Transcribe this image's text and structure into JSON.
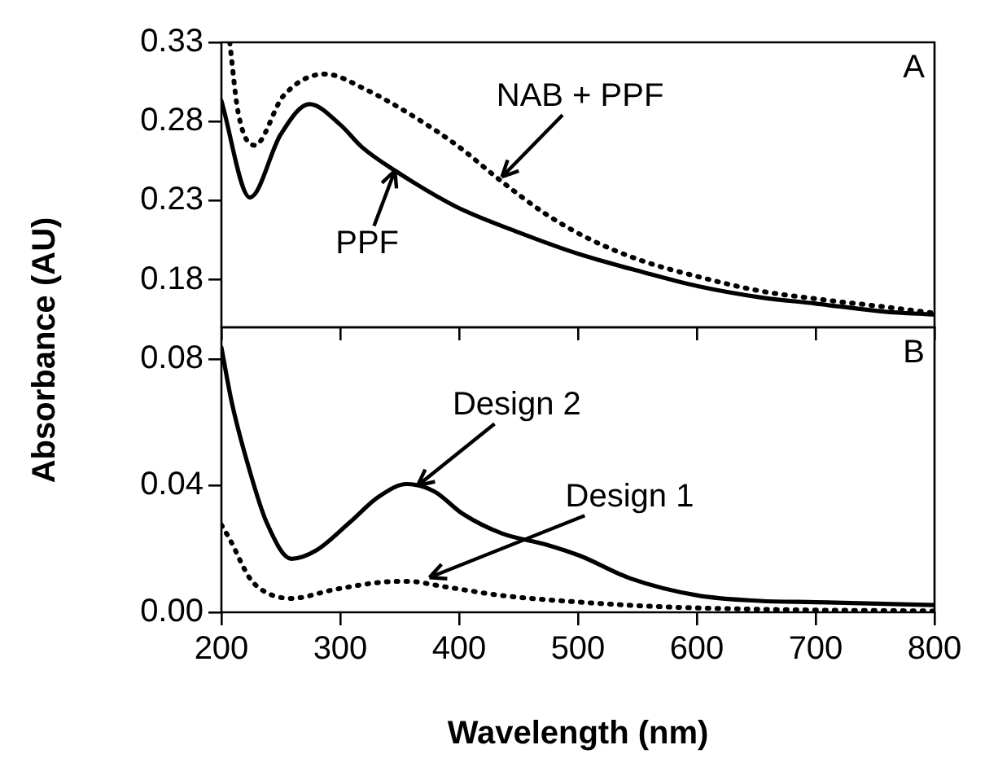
{
  "chart_data": [
    {
      "type": "line",
      "ylabel": "Absorbance (AU)",
      "xlim": [
        200,
        800
      ],
      "xticks": [
        200,
        300,
        400,
        500,
        600,
        700,
        800
      ],
      "ylim": [
        0.15,
        0.33
      ],
      "yticks": [
        0.18,
        0.23,
        0.28,
        0.33
      ],
      "tick_labels": "y",
      "legend": false,
      "grid": false,
      "annotations": [
        "A",
        {
          "text": "PPF",
          "x": 346,
          "y": 0.249
        },
        {
          "text": "NAB + PPF",
          "x": 436,
          "y": 0.245
        }
      ],
      "series": [
        {
          "color": "#000000",
          "line_style": "solid",
          "x": [
            200,
            224,
            250,
            274,
            300,
            318,
            346,
            398,
            450,
            502,
            554,
            601,
            653,
            700,
            757,
            800
          ],
          "values": [
            0.293,
            0.232,
            0.272,
            0.291,
            0.278,
            0.264,
            0.249,
            0.226,
            0.21,
            0.196,
            0.185,
            0.176,
            0.169,
            0.165,
            0.16,
            0.158
          ]
        },
        {
          "color": "#000000",
          "line_style": "dotted",
          "x": [
            207,
            214,
            228,
            252,
            287,
            322,
            360,
            398,
            436,
            472,
            509,
            554,
            601,
            653,
            700,
            757,
            800
          ],
          "values": [
            0.33,
            0.286,
            0.265,
            0.296,
            0.31,
            0.3,
            0.284,
            0.265,
            0.242,
            0.222,
            0.206,
            0.192,
            0.182,
            0.173,
            0.168,
            0.163,
            0.159
          ]
        }
      ]
    },
    {
      "type": "line",
      "xlabel": "Wavelength (nm)",
      "xlim": [
        200,
        800
      ],
      "xticks": [
        200,
        300,
        400,
        500,
        600,
        700,
        800
      ],
      "ylim": [
        0,
        0.09
      ],
      "yticks": [
        {
          "value": 0,
          "label": "0.00"
        },
        0.04,
        0.08
      ],
      "legend": false,
      "grid": false,
      "annotations": [
        "B",
        {
          "text": "Design 2",
          "x": 365,
          "y": 0.04
        },
        {
          "text": "Design 1",
          "x": 375,
          "y": 0.011
        }
      ],
      "series": [
        {
          "color": "#000000",
          "line_style": "solid",
          "x": [
            200,
            209,
            224,
            238,
            259,
            280,
            308,
            332,
            356,
            379,
            403,
            436,
            474,
            502,
            544,
            601,
            653,
            700,
            800
          ],
          "values": [
            0.0836,
            0.0658,
            0.0444,
            0.0284,
            0.0169,
            0.0196,
            0.0284,
            0.0364,
            0.0405,
            0.0382,
            0.0311,
            0.0249,
            0.0213,
            0.0178,
            0.0107,
            0.0053,
            0.0036,
            0.0032,
            0.0023
          ]
        },
        {
          "color": "#000000",
          "line_style": "dotted",
          "x": [
            200,
            207,
            224,
            238,
            259,
            294,
            332,
            356,
            389,
            436,
            502,
            568,
            662,
            800
          ],
          "values": [
            0.0276,
            0.0231,
            0.0107,
            0.0062,
            0.0044,
            0.0071,
            0.0094,
            0.0098,
            0.008,
            0.0053,
            0.0032,
            0.0018,
            0.0009,
            0.0004
          ]
        }
      ]
    }
  ]
}
